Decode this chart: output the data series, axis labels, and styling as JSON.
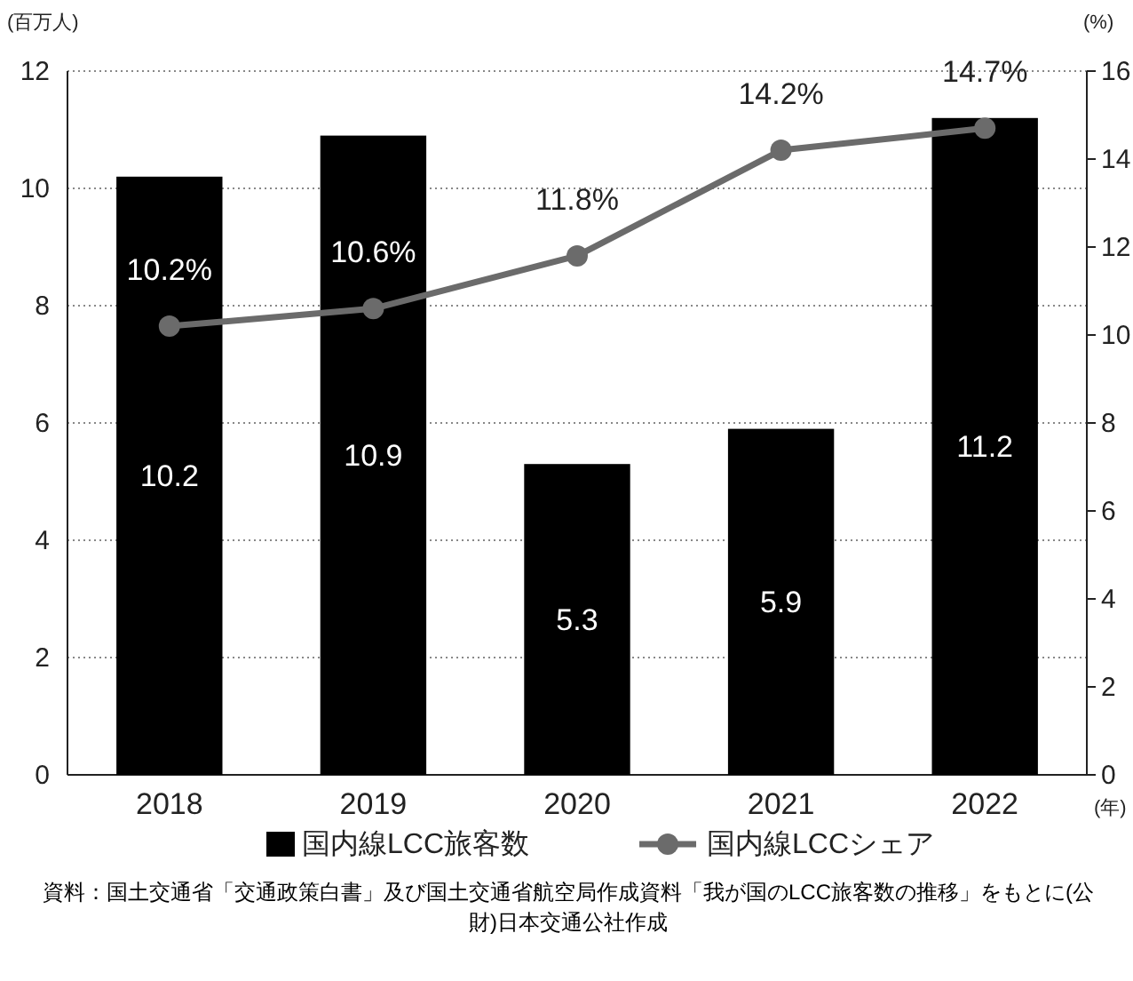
{
  "chart_data": {
    "type": "bar",
    "categories": [
      "2018",
      "2019",
      "2020",
      "2021",
      "2022"
    ],
    "xlabel": "(年)",
    "ylabel": "(百万人)",
    "y2label": "(%)",
    "ylim": [
      0,
      12
    ],
    "yticks": [
      0,
      2,
      4,
      6,
      8,
      10,
      12
    ],
    "y2lim": [
      0,
      16
    ],
    "y2ticks": [
      0,
      2,
      4,
      6,
      8,
      10,
      12,
      14,
      16
    ],
    "grid": "y",
    "legend": "bottom",
    "data_labels": true,
    "series": [
      {
        "name": "国内線LCC旅客数",
        "color": "#000000",
        "values": [
          10.2,
          10.9,
          5.3,
          5.9,
          11.2
        ]
      },
      {
        "name": "国内線LCCシェア",
        "type": "line",
        "axis": "y2",
        "color": "#6b6b6b",
        "marker": "circle",
        "values": [
          10.2,
          10.6,
          11.8,
          14.2,
          14.7
        ],
        "value_labels": [
          "10.2%",
          "10.6%",
          "11.8%",
          "14.2%",
          "14.7%"
        ]
      }
    ],
    "annotations": [
      "資料：国土交通省「交通政策白書」及び国土交通省航空局作成資料「我が国のLCC旅客数の推移」をもとに(公財)日本交通公社作成"
    ]
  }
}
